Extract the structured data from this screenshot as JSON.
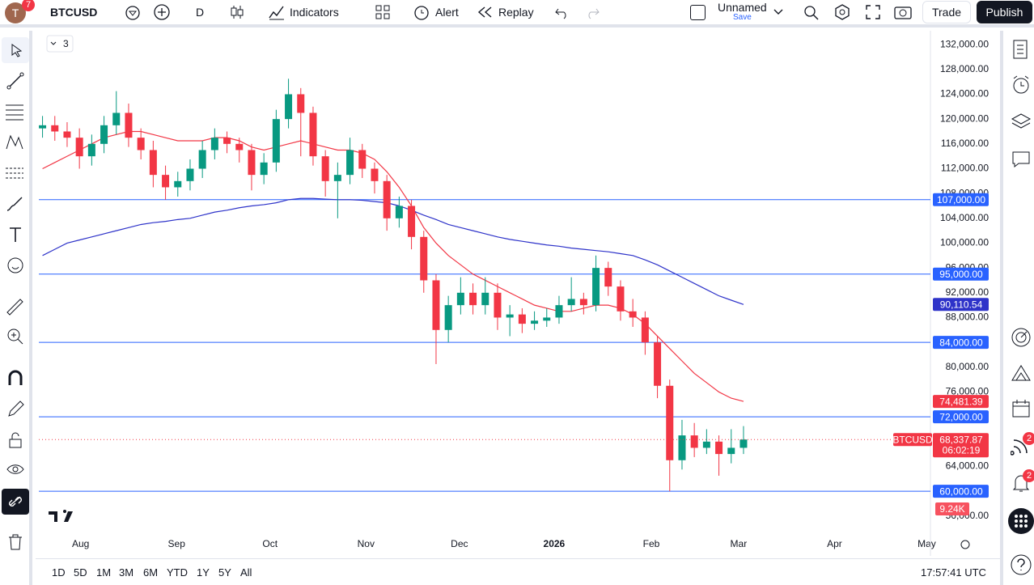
{
  "toolbar": {
    "avatar": "T",
    "notifications": "7",
    "symbol": "BTCUSD",
    "interval": "D",
    "indicators": "Indicators",
    "alert": "Alert",
    "replay": "Replay",
    "layout_name": "Unnamed",
    "save": "Save",
    "trade": "Trade",
    "publish": "Publish"
  },
  "legend_toggle": "3",
  "right_toolbar": {
    "badges": [
      "2",
      "2"
    ]
  },
  "bottom_bar": {
    "ranges": [
      "1D",
      "5D",
      "1M",
      "3M",
      "6M",
      "YTD",
      "1Y",
      "5Y",
      "All"
    ],
    "clock": "17:57:41 UTC"
  },
  "chart_data": {
    "type": "candlestick",
    "up_color": "#089981",
    "down_color": "#f23645",
    "xlim": [
      -0.3,
      72.2
    ],
    "xticks": [
      {
        "value": 3.1,
        "label": "Aug"
      },
      {
        "value": 10.9,
        "label": "Sep"
      },
      {
        "value": 18.5,
        "label": "Oct"
      },
      {
        "value": 26.3,
        "label": "Nov"
      },
      {
        "value": 33.9,
        "label": "Dec"
      },
      {
        "value": 41.6,
        "label": "2026"
      },
      {
        "value": 49.5,
        "label": "Feb"
      },
      {
        "value": 56.6,
        "label": "Mar"
      },
      {
        "value": 64.4,
        "label": "Apr"
      },
      {
        "value": 71.9,
        "label": "May"
      }
    ],
    "ylim": [
      53100,
      134500
    ],
    "yticks": [
      {
        "value": 132000,
        "label": "132,000.00"
      },
      {
        "value": 128000,
        "label": "128,000.00"
      },
      {
        "value": 124000,
        "label": "124,000.00"
      },
      {
        "value": 120000,
        "label": "120,000.00"
      },
      {
        "value": 116000,
        "label": "116,000.00"
      },
      {
        "value": 112000,
        "label": "112,000.00"
      },
      {
        "value": 108000,
        "label": "108,000.00"
      },
      {
        "value": 104000,
        "label": "104,000.00"
      },
      {
        "value": 100000,
        "label": "100,000.00"
      },
      {
        "value": 96000,
        "label": "96,000.00"
      },
      {
        "value": 92000,
        "label": "92,000.00"
      },
      {
        "value": 88000,
        "label": "88,000.00"
      },
      {
        "value": 80000,
        "label": "80,000.00"
      },
      {
        "value": 76000,
        "label": "76,000.00"
      },
      {
        "value": 64000,
        "label": "64,000.00"
      },
      {
        "value": 56000,
        "label": "56,000.00"
      }
    ],
    "candles": [
      [
        118500,
        120500,
        117000,
        119000
      ],
      [
        119000,
        120500,
        116500,
        118000
      ],
      [
        118000,
        119500,
        115500,
        117000
      ],
      [
        117000,
        118500,
        112000,
        114000
      ],
      [
        114000,
        117500,
        112500,
        116000
      ],
      [
        116000,
        120500,
        114500,
        119000
      ],
      [
        119000,
        124500,
        117500,
        121000
      ],
      [
        121000,
        122500,
        115500,
        117000
      ],
      [
        117000,
        118500,
        113500,
        115000
      ],
      [
        115000,
        116500,
        109000,
        111000
      ],
      [
        111000,
        112500,
        107000,
        109000
      ],
      [
        109000,
        111500,
        107500,
        110000
      ],
      [
        110000,
        113500,
        108500,
        112000
      ],
      [
        112000,
        116500,
        110500,
        115000
      ],
      [
        115000,
        118500,
        113500,
        117000
      ],
      [
        117000,
        118000,
        114500,
        116000
      ],
      [
        116000,
        117000,
        113000,
        115000
      ],
      [
        115000,
        116000,
        108500,
        111000
      ],
      [
        111000,
        114500,
        109500,
        113000
      ],
      [
        113000,
        121500,
        111500,
        120000
      ],
      [
        120000,
        126500,
        118500,
        124000
      ],
      [
        124000,
        125000,
        114000,
        121000
      ],
      [
        121000,
        122000,
        112500,
        114000
      ],
      [
        114000,
        115000,
        107500,
        110000
      ],
      [
        110000,
        113000,
        104000,
        111000
      ],
      [
        111000,
        117000,
        109500,
        115000
      ],
      [
        115000,
        116000,
        110500,
        112000
      ],
      [
        112000,
        113000,
        108000,
        110000
      ],
      [
        110000,
        111000,
        102000,
        104000
      ],
      [
        104000,
        107500,
        102500,
        106000
      ],
      [
        106000,
        107000,
        99000,
        101000
      ],
      [
        101000,
        102000,
        92000,
        94000
      ],
      [
        94000,
        95000,
        80500,
        86000
      ],
      [
        86000,
        91500,
        84000,
        90000
      ],
      [
        90000,
        94500,
        88500,
        92000
      ],
      [
        92000,
        93500,
        88500,
        90000
      ],
      [
        90000,
        94500,
        88500,
        92000
      ],
      [
        92000,
        93500,
        86000,
        88000
      ],
      [
        88000,
        90000,
        85000,
        88500
      ],
      [
        88500,
        89500,
        85500,
        87000
      ],
      [
        87000,
        89000,
        86000,
        87500
      ],
      [
        87500,
        89500,
        86500,
        88000
      ],
      [
        88000,
        91500,
        87000,
        90000
      ],
      [
        90000,
        94500,
        89000,
        91000
      ],
      [
        91000,
        92000,
        88500,
        90000
      ],
      [
        90000,
        98000,
        89000,
        96000
      ],
      [
        96000,
        97000,
        91500,
        93000
      ],
      [
        93000,
        94000,
        87500,
        89000
      ],
      [
        89000,
        91000,
        86500,
        88000
      ],
      [
        88000,
        89000,
        82000,
        84000
      ],
      [
        84000,
        85000,
        75000,
        77000
      ],
      [
        77000,
        78000,
        60000,
        65000
      ],
      [
        65000,
        71500,
        63500,
        69000
      ],
      [
        69000,
        71000,
        65500,
        67000
      ],
      [
        67000,
        70000,
        66000,
        68000
      ],
      [
        68000,
        69000,
        62500,
        66000
      ],
      [
        66000,
        70000,
        64500,
        67000
      ],
      [
        67000,
        70500,
        66000,
        68337.87
      ]
    ],
    "ma_lines": [
      {
        "color": "#f23645",
        "last_label": "74,481.39",
        "values": [
          112000,
          113000,
          114000,
          115000,
          116000,
          117000,
          117500,
          118000,
          118000,
          117500,
          117000,
          116500,
          116500,
          116500,
          117000,
          117000,
          116500,
          115500,
          115000,
          115500,
          116000,
          116500,
          116000,
          115500,
          115000,
          115000,
          114500,
          113500,
          111500,
          109000,
          106000,
          102500,
          100000,
          98000,
          96500,
          95000,
          94000,
          93000,
          92000,
          91000,
          90000,
          89500,
          89000,
          89000,
          89500,
          90000,
          90000,
          89500,
          88500,
          87000,
          85000,
          83000,
          81000,
          79000,
          77500,
          76000,
          75000,
          74481.39
        ]
      },
      {
        "color": "#2e33c9",
        "last_label": "90,110.54",
        "values": [
          98000,
          99000,
          100000,
          100500,
          101000,
          101500,
          102000,
          102500,
          103000,
          103300,
          103500,
          103800,
          104000,
          104500,
          105000,
          105300,
          105700,
          106000,
          106200,
          106500,
          107000,
          107200,
          107200,
          107100,
          107000,
          107000,
          106900,
          106700,
          106500,
          106000,
          105300,
          104500,
          103800,
          103000,
          102500,
          102000,
          101500,
          101000,
          100600,
          100300,
          100000,
          99700,
          99500,
          99200,
          99000,
          98800,
          98600,
          98300,
          98000,
          97300,
          96500,
          95500,
          94500,
          93500,
          92500,
          91500,
          90800,
          90110.54
        ]
      }
    ],
    "levels": [
      {
        "value": 107000,
        "label": "107,000.00"
      },
      {
        "value": 95000,
        "label": "95,000.00"
      },
      {
        "value": 84000,
        "label": "84,000.00"
      },
      {
        "value": 72000,
        "label": "72,000.00"
      },
      {
        "value": 60000,
        "label": "60,000.00"
      }
    ],
    "level_color": "#2962ff",
    "last_price": {
      "value": 68337.87,
      "label": "68,337.87"
    },
    "symbol_tag": "BTCUSD",
    "countdown": "06:02:19",
    "volume_label": "9.24K"
  }
}
